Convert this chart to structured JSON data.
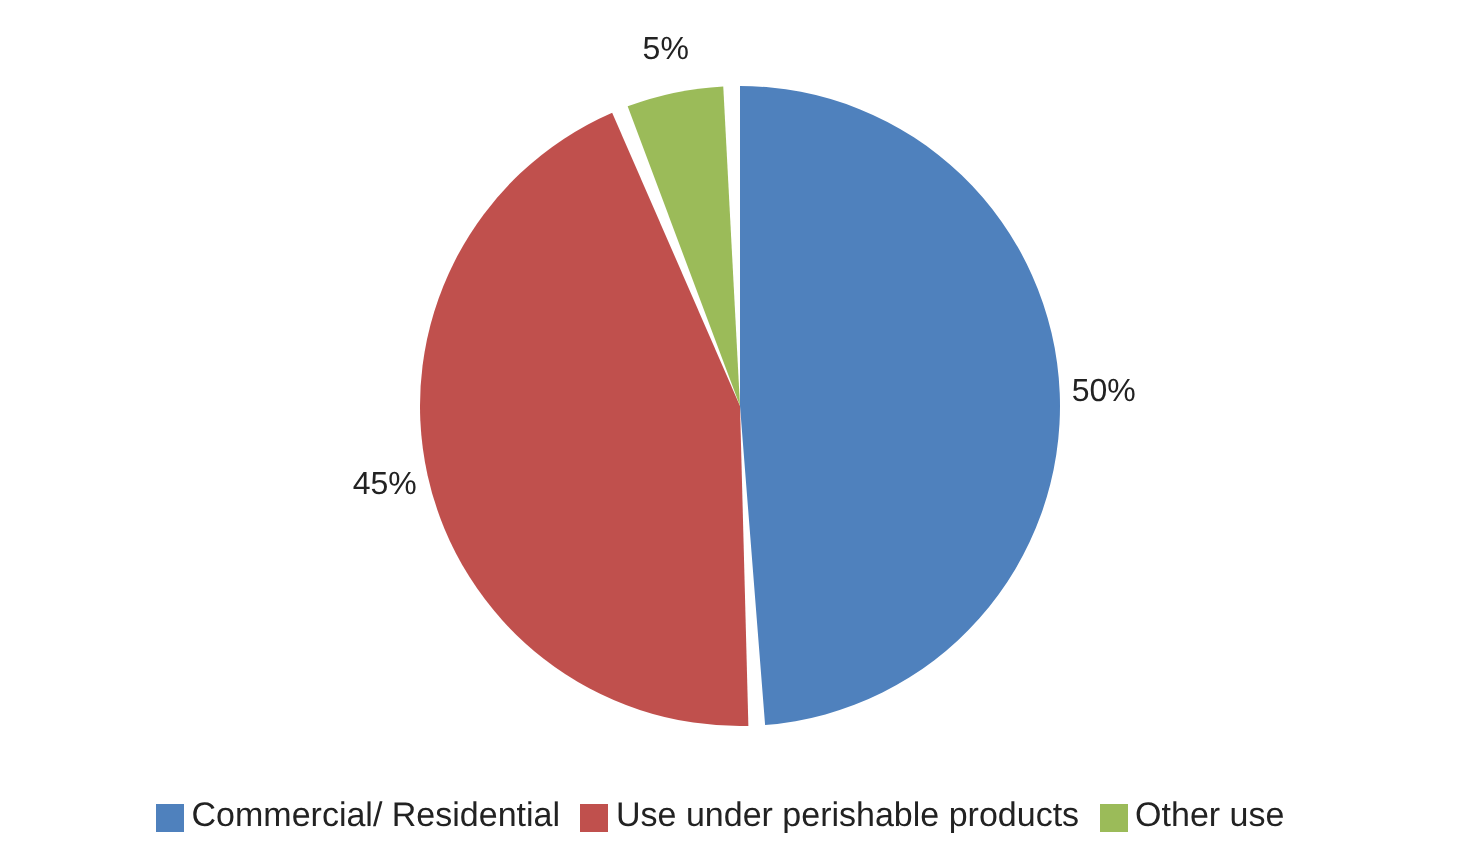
{
  "chart_data": {
    "type": "pie",
    "categories": [
      "Commercial/ Residential",
      "Use under perishable products",
      "Other use"
    ],
    "values": [
      50,
      45,
      5
    ],
    "colors": [
      "#4f81bd",
      "#c0504d",
      "#9bbb59"
    ],
    "value_labels": [
      "50%",
      "45%",
      "5%"
    ],
    "legend": "bottom"
  }
}
